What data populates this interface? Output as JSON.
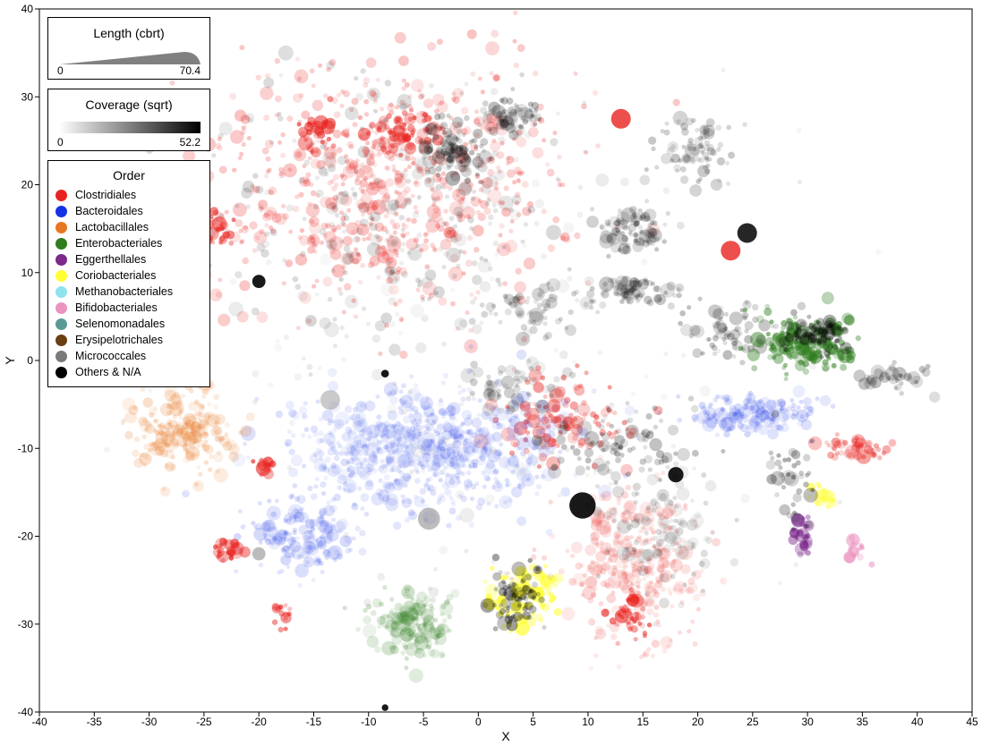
{
  "chart_data": {
    "type": "scatter",
    "xlabel": "X",
    "ylabel": "Y",
    "xlim": [
      -40,
      45
    ],
    "ylim": [
      -40,
      40
    ],
    "xticks": [
      -40,
      -35,
      -30,
      -25,
      -20,
      -15,
      -10,
      -5,
      0,
      5,
      10,
      15,
      20,
      25,
      30,
      35,
      40,
      45
    ],
    "yticks": [
      -40,
      -30,
      -20,
      -10,
      0,
      10,
      20,
      30,
      40
    ],
    "grid": false,
    "legend_placement": "top-left",
    "size_legend": {
      "title": "Length (cbrt)",
      "min_label": "0",
      "max_label": "70.4"
    },
    "coverage_legend": {
      "title": "Coverage (sqrt)",
      "min_label": "0",
      "max_label": "52.2"
    },
    "order_legend": {
      "title": "Order",
      "entries": [
        {
          "name": "Clostridiales",
          "color": "#e8231f"
        },
        {
          "name": "Bacteroidales",
          "color": "#1432e6"
        },
        {
          "name": "Lactobacillales",
          "color": "#e87722"
        },
        {
          "name": "Enterobacteriales",
          "color": "#2e7d1e"
        },
        {
          "name": "Eggerthellales",
          "color": "#7b2a8c"
        },
        {
          "name": "Coriobacteriales",
          "color": "#ffff33"
        },
        {
          "name": "Methanobacteriales",
          "color": "#8fe3ee"
        },
        {
          "name": "Bifidobacteriales",
          "color": "#eb94c0"
        },
        {
          "name": "Selenomonadales",
          "color": "#5a9a96"
        },
        {
          "name": "Erysipelotrichales",
          "color": "#6b3f12"
        },
        {
          "name": "Micrococcales",
          "color": "#7a7a7a"
        },
        {
          "name": "Others & N/A",
          "color": "#000000"
        }
      ]
    },
    "clusters": [
      {
        "order": "Clostridiales",
        "cx": -9,
        "cy": 20,
        "sx": 9,
        "sy": 7,
        "n": 700,
        "alpha": 0.22
      },
      {
        "order": "Others & N/A",
        "cx": -8,
        "cy": 17,
        "sx": 9,
        "sy": 8,
        "n": 260,
        "alpha": 0.12
      },
      {
        "order": "Clostridiales",
        "cx": -7,
        "cy": 26,
        "sx": 1.5,
        "sy": 1.2,
        "n": 60,
        "alpha": 0.5
      },
      {
        "order": "Clostridiales",
        "cx": -15,
        "cy": 26,
        "sx": 1.0,
        "sy": 1.5,
        "n": 30,
        "alpha": 0.5
      },
      {
        "order": "Clostridiales",
        "cx": -24,
        "cy": 15,
        "sx": 1.0,
        "sy": 1.0,
        "n": 30,
        "alpha": 0.5
      },
      {
        "order": "Others & N/A",
        "cx": -2,
        "cy": 24,
        "sx": 1.5,
        "sy": 1.5,
        "n": 90,
        "alpha": 0.25
      },
      {
        "order": "Others & N/A",
        "cx": 3,
        "cy": 28,
        "sx": 1.5,
        "sy": 1.0,
        "n": 60,
        "alpha": 0.2
      },
      {
        "order": "Others & N/A",
        "cx": 14,
        "cy": 15,
        "sx": 1.8,
        "sy": 1.2,
        "n": 90,
        "alpha": 0.18
      },
      {
        "order": "Others & N/A",
        "cx": 14,
        "cy": 8,
        "sx": 2.2,
        "sy": 0.9,
        "n": 80,
        "alpha": 0.18
      },
      {
        "order": "Others & N/A",
        "cx": 20,
        "cy": 24,
        "sx": 1.8,
        "sy": 2.0,
        "n": 80,
        "alpha": 0.18
      },
      {
        "order": "Others & N/A",
        "cx": 5,
        "cy": 6,
        "sx": 2.5,
        "sy": 1.5,
        "n": 70,
        "alpha": 0.14
      },
      {
        "order": "Others & N/A",
        "cx": 23,
        "cy": 3,
        "sx": 2.5,
        "sy": 2.0,
        "n": 70,
        "alpha": 0.2
      },
      {
        "order": "Others & N/A",
        "cx": 38,
        "cy": -2,
        "sx": 1.5,
        "sy": 0.7,
        "n": 35,
        "alpha": 0.2
      },
      {
        "order": "Others & N/A",
        "cx": 3,
        "cy": -3,
        "sx": 2.5,
        "sy": 1.8,
        "n": 60,
        "alpha": 0.15
      },
      {
        "order": "Clostridiales",
        "cx": 8,
        "cy": -7,
        "sx": 3.5,
        "sy": 2.5,
        "n": 110,
        "alpha": 0.35
      },
      {
        "order": "Others & N/A",
        "cx": 13,
        "cy": -10,
        "sx": 3.5,
        "sy": 2.0,
        "n": 90,
        "alpha": 0.2
      },
      {
        "order": "Clostridiales",
        "cx": 14,
        "cy": -23,
        "sx": 3.2,
        "sy": 4.0,
        "n": 320,
        "alpha": 0.15
      },
      {
        "order": "Others & N/A",
        "cx": 17,
        "cy": -19,
        "sx": 2.5,
        "sy": 3.5,
        "n": 110,
        "alpha": 0.12
      },
      {
        "order": "Clostridiales",
        "cx": 14,
        "cy": -29,
        "sx": 1.0,
        "sy": 1.2,
        "n": 40,
        "alpha": 0.5
      },
      {
        "order": "Bacteroidales",
        "cx": -5,
        "cy": -10,
        "sx": 6,
        "sy": 3.5,
        "n": 700,
        "alpha": 0.12
      },
      {
        "order": "Bacteroidales",
        "cx": -16,
        "cy": -20,
        "sx": 2.5,
        "sy": 2.0,
        "n": 160,
        "alpha": 0.14
      },
      {
        "order": "Bacteroidales",
        "cx": 25,
        "cy": -6,
        "sx": 3.5,
        "sy": 1.0,
        "n": 160,
        "alpha": 0.15
      },
      {
        "order": "Lactobacillales",
        "cx": -27,
        "cy": -8,
        "sx": 2.2,
        "sy": 2.2,
        "n": 220,
        "alpha": 0.18
      },
      {
        "order": "Enterobacteriales",
        "cx": -6,
        "cy": -30,
        "sx": 1.8,
        "sy": 2.0,
        "n": 170,
        "alpha": 0.18
      },
      {
        "order": "Coriobacteriales",
        "cx": 4,
        "cy": -27,
        "sx": 1.6,
        "sy": 2.0,
        "n": 90,
        "alpha": 0.55
      },
      {
        "order": "Others & N/A",
        "cx": 3.5,
        "cy": -27,
        "sx": 1.3,
        "sy": 1.8,
        "n": 70,
        "alpha": 0.3
      },
      {
        "order": "Enterobacteriales",
        "cx": 30,
        "cy": 2,
        "sx": 2.2,
        "sy": 1.6,
        "n": 180,
        "alpha": 0.45
      },
      {
        "order": "Others & N/A",
        "cx": 30.5,
        "cy": 3,
        "sx": 1.4,
        "sy": 1.0,
        "n": 90,
        "alpha": 0.3
      },
      {
        "order": "Clostridiales",
        "cx": 35,
        "cy": -10,
        "sx": 1.5,
        "sy": 0.6,
        "n": 45,
        "alpha": 0.35
      },
      {
        "order": "Eggerthellales",
        "cx": 29.5,
        "cy": -20,
        "sx": 0.5,
        "sy": 1.2,
        "n": 30,
        "alpha": 0.5
      },
      {
        "order": "Coriobacteriales",
        "cx": 31.5,
        "cy": -15,
        "sx": 0.6,
        "sy": 0.8,
        "n": 20,
        "alpha": 0.5
      },
      {
        "order": "Bifidobacteriales",
        "cx": 34.5,
        "cy": -21.5,
        "sx": 0.5,
        "sy": 0.6,
        "n": 18,
        "alpha": 0.55
      },
      {
        "order": "Others & N/A",
        "cx": 28.5,
        "cy": -14,
        "sx": 1.2,
        "sy": 2.5,
        "n": 40,
        "alpha": 0.25
      },
      {
        "order": "Clostridiales",
        "cx": -23,
        "cy": -21.5,
        "sx": 0.8,
        "sy": 0.6,
        "n": 25,
        "alpha": 0.55
      },
      {
        "order": "Clostridiales",
        "cx": -18,
        "cy": -29,
        "sx": 0.5,
        "sy": 0.7,
        "n": 15,
        "alpha": 0.5
      },
      {
        "order": "Clostridiales",
        "cx": -19.5,
        "cy": -12,
        "sx": 0.5,
        "sy": 0.6,
        "n": 15,
        "alpha": 0.5
      },
      {
        "order": "Micrococcales",
        "cx": 2,
        "cy": 0,
        "sx": 14,
        "sy": 14,
        "n": 160,
        "alpha": 0.12
      }
    ],
    "large_points": [
      {
        "order": "Others & N/A",
        "x": 9.5,
        "y": -16.5,
        "r": 1.2,
        "alpha": 0.9
      },
      {
        "order": "Others & N/A",
        "x": 18,
        "y": -13,
        "r": 0.7,
        "alpha": 0.9
      },
      {
        "order": "Others & N/A",
        "x": -20,
        "y": 9,
        "r": 0.6,
        "alpha": 0.9
      },
      {
        "order": "Others & N/A",
        "x": -8.5,
        "y": -1.5,
        "r": 0.35,
        "alpha": 0.9
      },
      {
        "order": "Others & N/A",
        "x": -8.5,
        "y": -39.5,
        "r": 0.3,
        "alpha": 0.9
      },
      {
        "order": "Others & N/A",
        "x": 24.5,
        "y": 14.5,
        "r": 0.9,
        "alpha": 0.85
      },
      {
        "order": "Clostridiales",
        "x": 23,
        "y": 12.5,
        "r": 0.9,
        "alpha": 0.8
      },
      {
        "order": "Clostridiales",
        "x": 13,
        "y": 27.5,
        "r": 0.9,
        "alpha": 0.8
      },
      {
        "order": "Micrococcales",
        "x": -4.5,
        "y": -18,
        "r": 1.0,
        "alpha": 0.5
      },
      {
        "order": "Micrococcales",
        "x": -13.5,
        "y": -4.5,
        "r": 0.9,
        "alpha": 0.4
      },
      {
        "order": "Micrococcales",
        "x": -20,
        "y": -22,
        "r": 0.6,
        "alpha": 0.5
      }
    ]
  }
}
